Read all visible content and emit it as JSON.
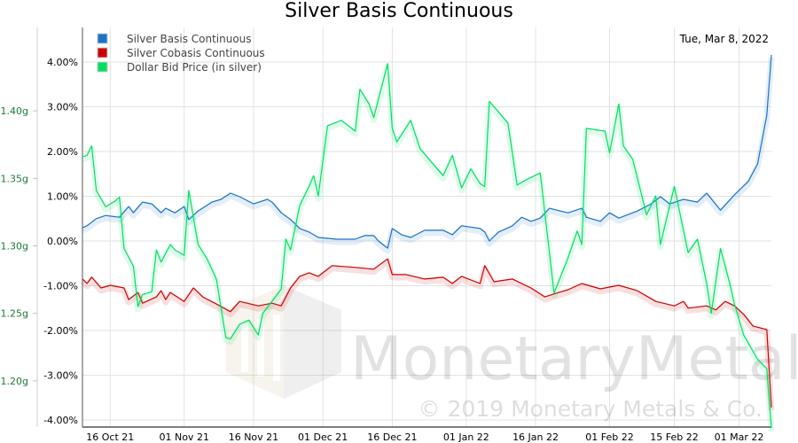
{
  "chart_data": {
    "type": "line",
    "title": "Silver Basis Continuous",
    "date_label": "Tue, Mar 8, 2022",
    "watermark": {
      "brand": "MonetaryMetals",
      "copyright": "© 2019 Monetary Metals & Co."
    },
    "legend_position": "top-left",
    "grid": true,
    "x_range": [
      "2021-10-10",
      "2022-03-08"
    ],
    "x_ticks": [
      {
        "date": "2021-10-16",
        "label": "16 Oct 21"
      },
      {
        "date": "2021-11-01",
        "label": "01 Nov 21"
      },
      {
        "date": "2021-11-16",
        "label": "16 Nov 21"
      },
      {
        "date": "2021-12-01",
        "label": "01 Dec 21"
      },
      {
        "date": "2021-12-16",
        "label": "16 Dec 21"
      },
      {
        "date": "2022-01-01",
        "label": "01 Jan 22"
      },
      {
        "date": "2022-01-16",
        "label": "16 Jan 22"
      },
      {
        "date": "2022-02-01",
        "label": "01 Feb 22"
      },
      {
        "date": "2022-02-15",
        "label": "15 Feb 22"
      },
      {
        "date": "2022-03-01",
        "label": "01 Mar 22"
      }
    ],
    "y_percent": {
      "range": [
        -4.0,
        4.0
      ],
      "ticks": [
        {
          "v": 4,
          "label": "4.00%"
        },
        {
          "v": 3,
          "label": "3.00%"
        },
        {
          "v": 2,
          "label": "2.00%"
        },
        {
          "v": 1,
          "label": "1.00%"
        },
        {
          "v": 0,
          "label": "0.00%"
        },
        {
          "v": -1,
          "label": "-1.00%"
        },
        {
          "v": -2,
          "label": "-2.00%"
        },
        {
          "v": -3,
          "label": "-3.00%"
        },
        {
          "v": -4,
          "label": "-4.00%"
        }
      ]
    },
    "y_grams": {
      "range": [
        1.1658,
        1.4342
      ],
      "ticks": [
        {
          "v": 1.4,
          "label": "1.40g"
        },
        {
          "v": 1.35,
          "label": "1.35g"
        },
        {
          "v": 1.3,
          "label": "1.30g"
        },
        {
          "v": 1.25,
          "label": "1.25g"
        },
        {
          "v": 1.2,
          "label": "1.20g"
        }
      ]
    },
    "series": [
      {
        "name": "Silver Basis Continuous",
        "color": "#1a73c9",
        "axis": "percent",
        "points": [
          [
            "2021-10-10",
            0.3
          ],
          [
            "2021-10-11",
            0.34
          ],
          [
            "2021-10-13",
            0.5
          ],
          [
            "2021-10-15",
            0.57
          ],
          [
            "2021-10-18",
            0.53
          ],
          [
            "2021-10-20",
            0.77
          ],
          [
            "2021-10-21",
            0.63
          ],
          [
            "2021-10-23",
            0.87
          ],
          [
            "2021-10-25",
            0.83
          ],
          [
            "2021-10-27",
            0.63
          ],
          [
            "2021-10-28",
            0.73
          ],
          [
            "2021-10-30",
            0.63
          ],
          [
            "2021-11-01",
            0.77
          ],
          [
            "2021-11-02",
            0.48
          ],
          [
            "2021-11-04",
            0.67
          ],
          [
            "2021-11-07",
            0.87
          ],
          [
            "2021-11-09",
            0.93
          ],
          [
            "2021-11-11",
            1.07
          ],
          [
            "2021-11-13",
            0.99
          ],
          [
            "2021-11-16",
            0.83
          ],
          [
            "2021-11-19",
            0.93
          ],
          [
            "2021-11-20",
            0.87
          ],
          [
            "2021-11-22",
            0.63
          ],
          [
            "2021-11-24",
            0.48
          ],
          [
            "2021-11-26",
            0.28
          ],
          [
            "2021-11-28",
            0.2
          ],
          [
            "2021-11-30",
            0.08
          ],
          [
            "2021-12-04",
            0.04
          ],
          [
            "2021-12-08",
            0.04
          ],
          [
            "2021-12-10",
            0.12
          ],
          [
            "2021-12-12",
            0.12
          ],
          [
            "2021-12-13",
            0.0
          ],
          [
            "2021-12-15",
            -0.16
          ],
          [
            "2021-12-16",
            0.28
          ],
          [
            "2021-12-18",
            0.14
          ],
          [
            "2021-12-20",
            0.08
          ],
          [
            "2021-12-23",
            0.24
          ],
          [
            "2021-12-27",
            0.24
          ],
          [
            "2021-12-29",
            0.14
          ],
          [
            "2021-12-31",
            0.34
          ],
          [
            "2022-01-04",
            0.28
          ],
          [
            "2022-01-05",
            0.2
          ],
          [
            "2022-01-06",
            0.0
          ],
          [
            "2022-01-08",
            0.2
          ],
          [
            "2022-01-11",
            0.34
          ],
          [
            "2022-01-13",
            0.53
          ],
          [
            "2022-01-15",
            0.44
          ],
          [
            "2022-01-17",
            0.51
          ],
          [
            "2022-01-19",
            0.73
          ],
          [
            "2022-01-23",
            0.63
          ],
          [
            "2022-01-26",
            0.73
          ],
          [
            "2022-01-27",
            0.53
          ],
          [
            "2022-01-30",
            0.44
          ],
          [
            "2022-02-01",
            0.63
          ],
          [
            "2022-02-03",
            0.51
          ],
          [
            "2022-02-07",
            0.67
          ],
          [
            "2022-02-10",
            0.83
          ],
          [
            "2022-02-12",
            0.99
          ],
          [
            "2022-02-14",
            0.83
          ],
          [
            "2022-02-17",
            0.93
          ],
          [
            "2022-02-20",
            0.87
          ],
          [
            "2022-02-22",
            1.07
          ],
          [
            "2022-02-25",
            0.69
          ],
          [
            "2022-02-28",
            1.03
          ],
          [
            "2022-03-03",
            1.33
          ],
          [
            "2022-03-05",
            1.72
          ],
          [
            "2022-03-07",
            2.81
          ],
          [
            "2022-03-08",
            4.16
          ]
        ]
      },
      {
        "name": "Silver Cobasis Continuous",
        "color": "#cc0000",
        "axis": "percent",
        "points": [
          [
            "2021-10-10",
            -0.85
          ],
          [
            "2021-10-11",
            -0.95
          ],
          [
            "2021-10-12",
            -0.81
          ],
          [
            "2021-10-14",
            -1.05
          ],
          [
            "2021-10-16",
            -0.99
          ],
          [
            "2021-10-19",
            -1.05
          ],
          [
            "2021-10-20",
            -1.31
          ],
          [
            "2021-10-22",
            -1.15
          ],
          [
            "2021-10-23",
            -1.39
          ],
          [
            "2021-10-26",
            -1.25
          ],
          [
            "2021-10-27",
            -1.11
          ],
          [
            "2021-10-28",
            -1.31
          ],
          [
            "2021-10-29",
            -1.15
          ],
          [
            "2021-11-01",
            -1.35
          ],
          [
            "2021-11-03",
            -1.05
          ],
          [
            "2021-11-05",
            -1.25
          ],
          [
            "2021-11-08",
            -1.41
          ],
          [
            "2021-11-11",
            -1.58
          ],
          [
            "2021-11-13",
            -1.35
          ],
          [
            "2021-11-17",
            -1.45
          ],
          [
            "2021-11-20",
            -1.39
          ],
          [
            "2021-11-22",
            -1.45
          ],
          [
            "2021-11-24",
            -1.05
          ],
          [
            "2021-11-26",
            -0.79
          ],
          [
            "2021-11-28",
            -0.71
          ],
          [
            "2021-11-30",
            -0.79
          ],
          [
            "2021-12-03",
            -0.55
          ],
          [
            "2021-12-08",
            -0.59
          ],
          [
            "2021-12-12",
            -0.63
          ],
          [
            "2021-12-15",
            -0.4
          ],
          [
            "2021-12-16",
            -0.75
          ],
          [
            "2021-12-19",
            -0.75
          ],
          [
            "2021-12-23",
            -0.85
          ],
          [
            "2021-12-27",
            -0.81
          ],
          [
            "2021-12-29",
            -0.95
          ],
          [
            "2021-12-31",
            -0.79
          ],
          [
            "2022-01-04",
            -0.95
          ],
          [
            "2022-01-05",
            -0.55
          ],
          [
            "2022-01-07",
            -0.91
          ],
          [
            "2022-01-11",
            -0.85
          ],
          [
            "2022-01-15",
            -1.05
          ],
          [
            "2022-01-18",
            -1.25
          ],
          [
            "2022-01-21",
            -1.15
          ],
          [
            "2022-01-23",
            -1.09
          ],
          [
            "2022-01-26",
            -0.95
          ],
          [
            "2022-01-30",
            -1.07
          ],
          [
            "2022-02-03",
            -0.99
          ],
          [
            "2022-02-07",
            -1.11
          ],
          [
            "2022-02-11",
            -1.35
          ],
          [
            "2022-02-15",
            -1.45
          ],
          [
            "2022-02-17",
            -1.35
          ],
          [
            "2022-02-18",
            -1.5
          ],
          [
            "2022-02-22",
            -1.45
          ],
          [
            "2022-02-24",
            -1.54
          ],
          [
            "2022-02-26",
            -1.35
          ],
          [
            "2022-02-28",
            -1.45
          ],
          [
            "2022-03-02",
            -1.64
          ],
          [
            "2022-03-04",
            -1.9
          ],
          [
            "2022-03-07",
            -1.98
          ],
          [
            "2022-03-08",
            -3.72
          ]
        ]
      },
      {
        "name": "Dollar Bid Price (in silver)",
        "color": "#00e060",
        "axis": "grams",
        "points": [
          [
            "2021-10-10",
            1.366
          ],
          [
            "2021-10-11",
            1.367
          ],
          [
            "2021-10-12",
            1.374
          ],
          [
            "2021-10-13",
            1.341
          ],
          [
            "2021-10-15",
            1.329
          ],
          [
            "2021-10-17",
            1.333
          ],
          [
            "2021-10-18",
            1.336
          ],
          [
            "2021-10-19",
            1.298
          ],
          [
            "2021-10-21",
            1.285
          ],
          [
            "2021-10-22",
            1.255
          ],
          [
            "2021-10-23",
            1.264
          ],
          [
            "2021-10-25",
            1.266
          ],
          [
            "2021-10-26",
            1.297
          ],
          [
            "2021-10-27",
            1.288
          ],
          [
            "2021-10-29",
            1.301
          ],
          [
            "2021-10-30",
            1.297
          ],
          [
            "2021-11-01",
            1.293
          ],
          [
            "2021-11-02",
            1.341
          ],
          [
            "2021-11-04",
            1.301
          ],
          [
            "2021-11-06",
            1.29
          ],
          [
            "2021-11-08",
            1.275
          ],
          [
            "2021-11-10",
            1.232
          ],
          [
            "2021-11-11",
            1.231
          ],
          [
            "2021-11-13",
            1.242
          ],
          [
            "2021-11-15",
            1.245
          ],
          [
            "2021-11-17",
            1.234
          ],
          [
            "2021-11-18",
            1.25
          ],
          [
            "2021-11-20",
            1.259
          ],
          [
            "2021-11-22",
            1.268
          ],
          [
            "2021-11-23",
            1.305
          ],
          [
            "2021-11-24",
            1.297
          ],
          [
            "2021-11-26",
            1.33
          ],
          [
            "2021-11-28",
            1.344
          ],
          [
            "2021-11-29",
            1.352
          ],
          [
            "2021-11-30",
            1.337
          ],
          [
            "2021-12-02",
            1.389
          ],
          [
            "2021-12-05",
            1.393
          ],
          [
            "2021-12-08",
            1.385
          ],
          [
            "2021-12-09",
            1.416
          ],
          [
            "2021-12-11",
            1.405
          ],
          [
            "2021-12-12",
            1.395
          ],
          [
            "2021-12-15",
            1.435
          ],
          [
            "2021-12-16",
            1.387
          ],
          [
            "2021-12-17",
            1.377
          ],
          [
            "2021-12-20",
            1.393
          ],
          [
            "2021-12-22",
            1.372
          ],
          [
            "2021-12-27",
            1.352
          ],
          [
            "2021-12-29",
            1.367
          ],
          [
            "2021-12-31",
            1.343
          ],
          [
            "2022-01-02",
            1.357
          ],
          [
            "2022-01-04",
            1.346
          ],
          [
            "2022-01-05",
            1.344
          ],
          [
            "2022-01-06",
            1.407
          ],
          [
            "2022-01-10",
            1.391
          ],
          [
            "2022-01-12",
            1.345
          ],
          [
            "2022-01-14",
            1.349
          ],
          [
            "2022-01-17",
            1.354
          ],
          [
            "2022-01-20",
            1.265
          ],
          [
            "2022-01-23",
            1.291
          ],
          [
            "2022-01-25",
            1.311
          ],
          [
            "2022-01-26",
            1.301
          ],
          [
            "2022-01-27",
            1.387
          ],
          [
            "2022-01-31",
            1.385
          ],
          [
            "2022-02-01",
            1.369
          ],
          [
            "2022-02-03",
            1.405
          ],
          [
            "2022-02-04",
            1.374
          ],
          [
            "2022-02-06",
            1.364
          ],
          [
            "2022-02-09",
            1.323
          ],
          [
            "2022-02-11",
            1.337
          ],
          [
            "2022-02-12",
            1.301
          ],
          [
            "2022-02-15",
            1.344
          ],
          [
            "2022-02-18",
            1.295
          ],
          [
            "2022-02-20",
            1.305
          ],
          [
            "2022-02-22",
            1.272
          ],
          [
            "2022-02-23",
            1.25
          ],
          [
            "2022-02-25",
            1.298
          ],
          [
            "2022-02-27",
            1.272
          ],
          [
            "2022-02-28",
            1.257
          ],
          [
            "2022-03-02",
            1.234
          ],
          [
            "2022-03-05",
            1.216
          ],
          [
            "2022-03-07",
            1.209
          ],
          [
            "2022-03-08",
            1.165
          ]
        ]
      }
    ]
  }
}
